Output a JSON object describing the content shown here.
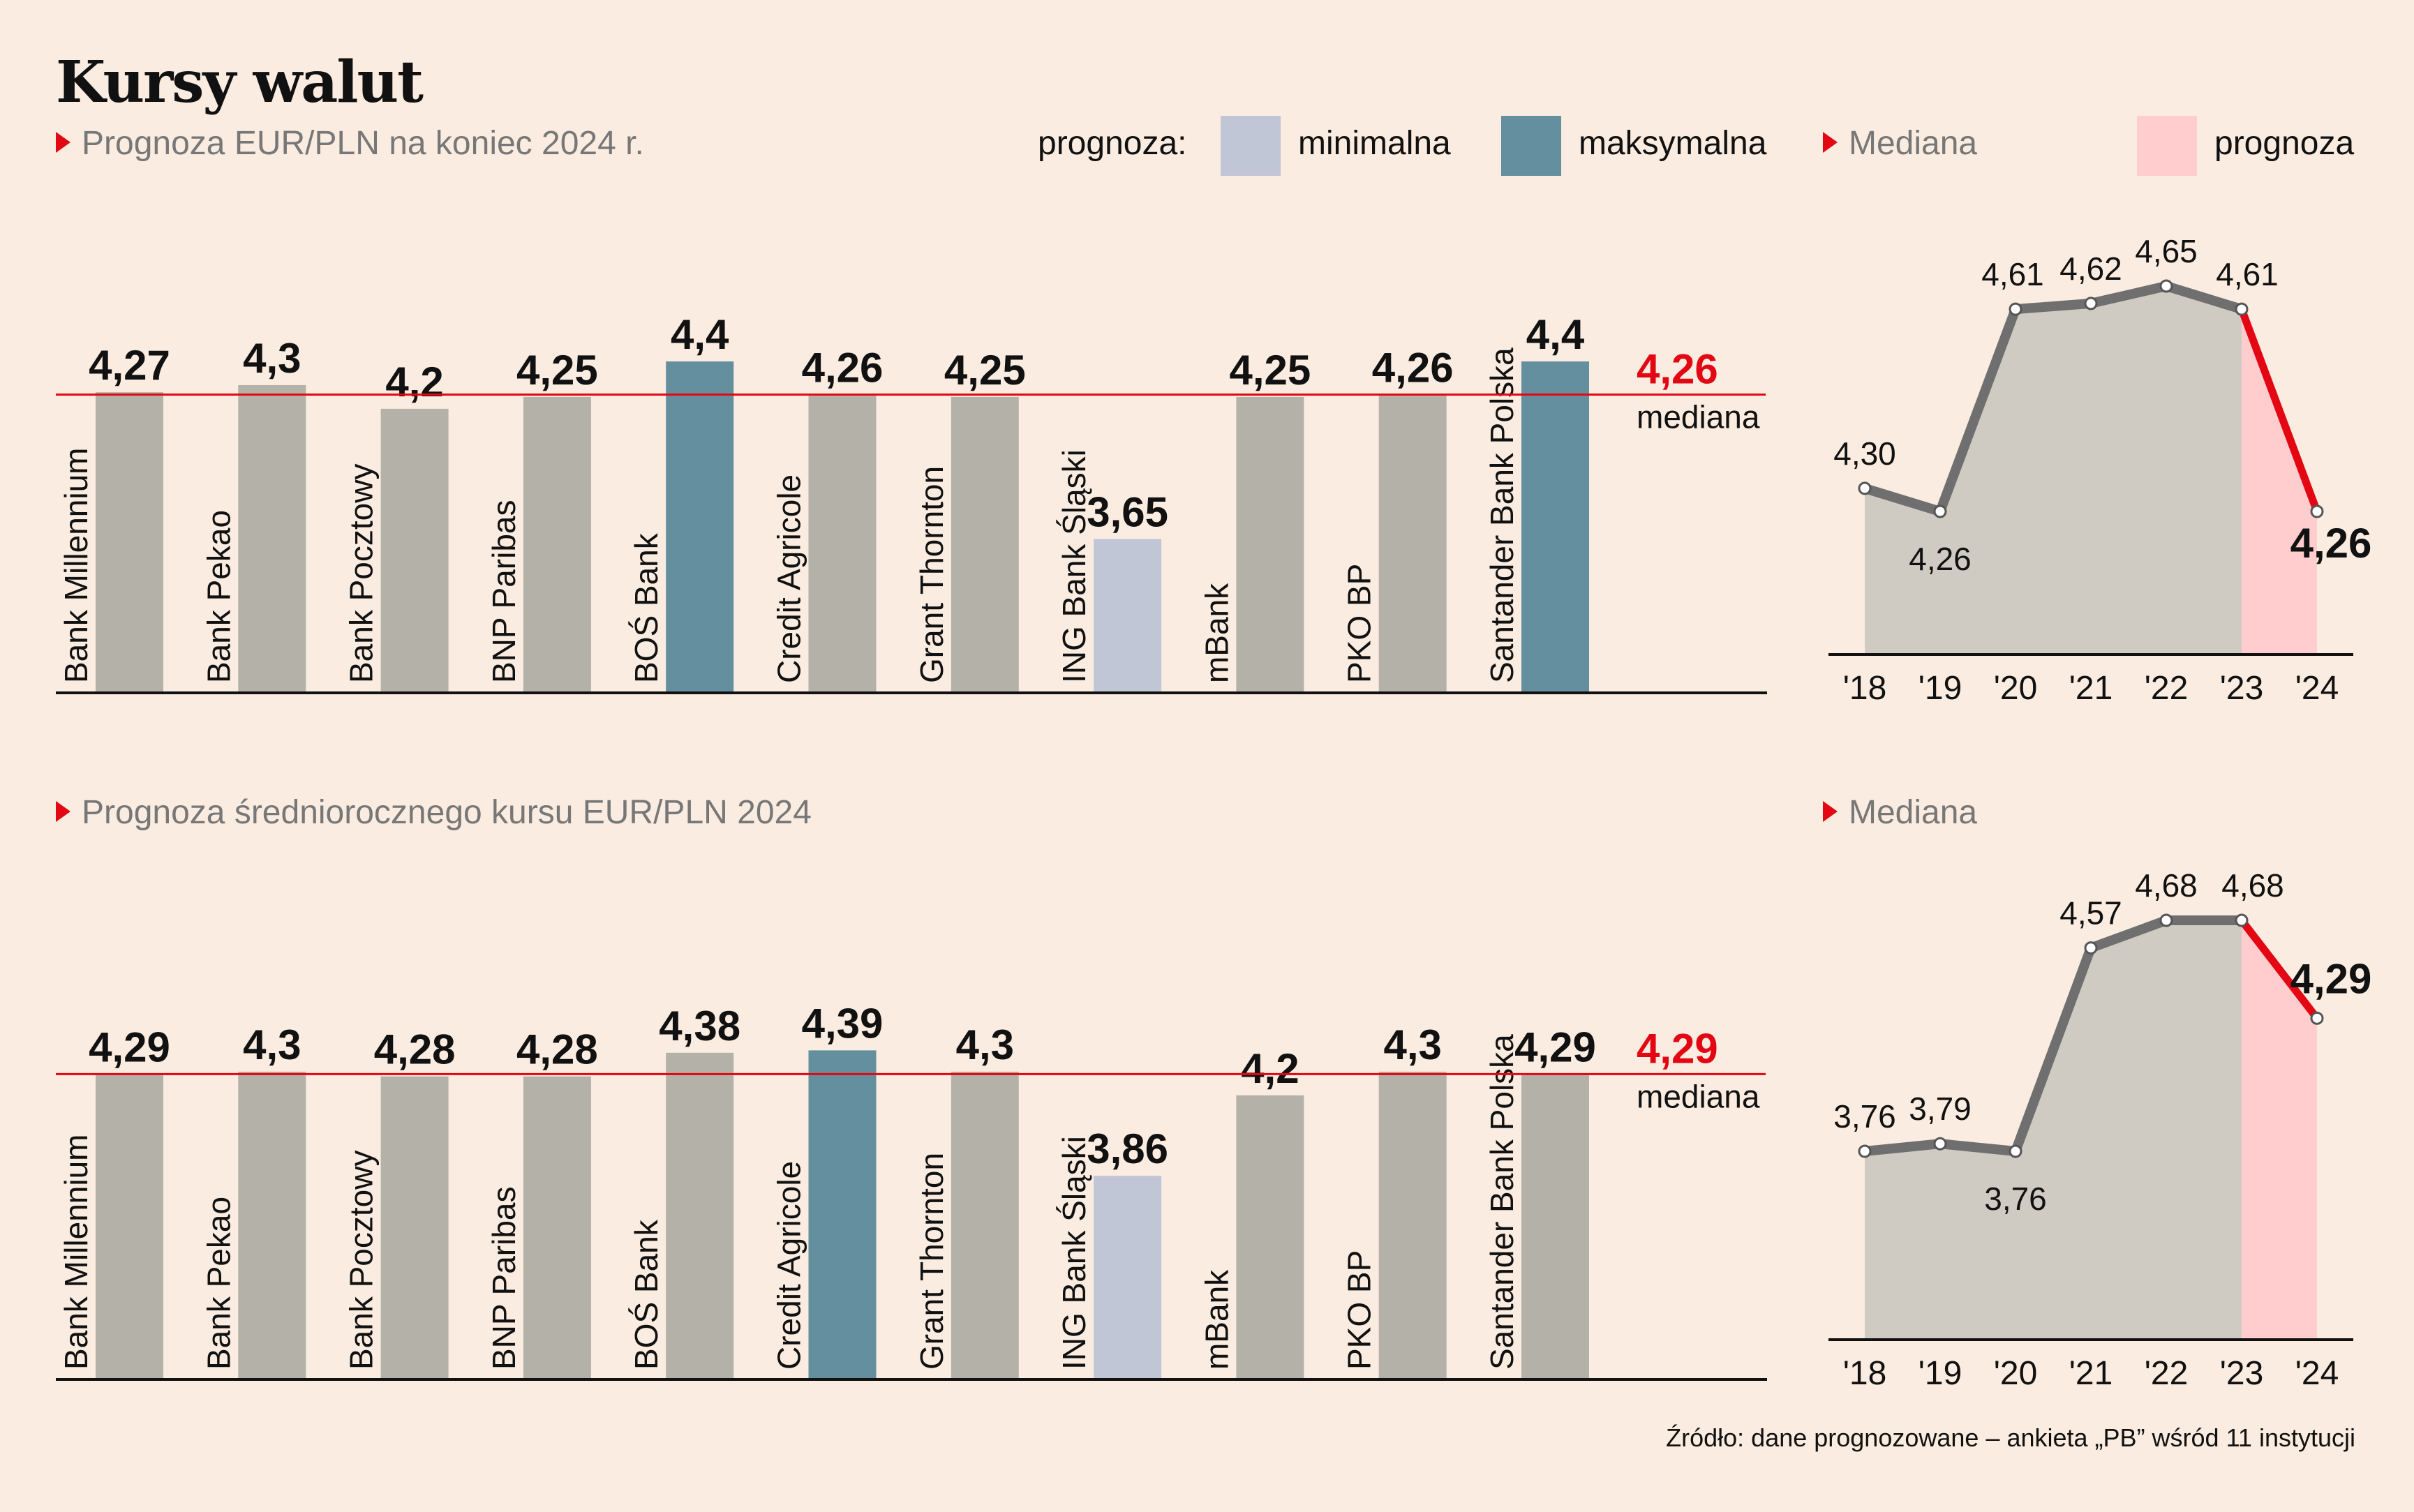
{
  "title": "Kursy walut",
  "legend": {
    "prefix": "prognoza:",
    "min_label": "minimalna",
    "max_label": "maksymalna",
    "forecast_label": "prognoza",
    "colors": {
      "min": "#c1c6d6",
      "max": "#648f9f",
      "normal": "#b4b2a8",
      "forecast_area": "#ffcdcd"
    }
  },
  "source": "Źródło: dane prognozowane – ankieta „PB” wśród 11 instytucji",
  "colors": {
    "accent": "#e30613",
    "line": "#6f6f6f",
    "area": "#cfcbc3",
    "axis": "#111111"
  },
  "chart_data": [
    {
      "type": "bar",
      "title": "Prognoza EUR/PLN na koniec 2024 r.",
      "categories": [
        "Bank Millennium",
        "Bank Pekao",
        "Bank Pocztowy",
        "BNP Paribas",
        "BOŚ Bank",
        "Credit Agricole",
        "Grant Thornton",
        "ING Bank Śląski",
        "mBank",
        "PKO BP",
        "Santander Bank Polska"
      ],
      "values": [
        4.27,
        4.3,
        4.2,
        4.25,
        4.4,
        4.26,
        4.25,
        3.65,
        4.25,
        4.26,
        4.4
      ],
      "value_labels": [
        "4,27",
        "4,3",
        "4,2",
        "4,25",
        "4,4",
        "4,26",
        "4,25",
        "3,65",
        "4,25",
        "4,26",
        "4,4"
      ],
      "highlight": [
        "normal",
        "normal",
        "normal",
        "normal",
        "max",
        "normal",
        "normal",
        "min",
        "normal",
        "normal",
        "max"
      ],
      "median": 4.26,
      "median_label": "4,26",
      "median_caption": "mediana"
    },
    {
      "type": "area",
      "title": "Mediana",
      "categories": [
        "'18",
        "'19",
        "'20",
        "'21",
        "'22",
        "'23",
        "'24"
      ],
      "values": [
        4.3,
        4.26,
        4.61,
        4.62,
        4.65,
        4.61,
        4.26
      ],
      "value_labels": [
        "4,30",
        "4,26",
        "4,61",
        "4,62",
        "4,65",
        "4,61",
        "4,26"
      ],
      "forecast_from_index": 5
    },
    {
      "type": "bar",
      "title": "Prognoza średniorocznego kursu EUR/PLN 2024",
      "categories": [
        "Bank Millennium",
        "Bank Pekao",
        "Bank Pocztowy",
        "BNP Paribas",
        "BOŚ Bank",
        "Credit Agricole",
        "Grant Thornton",
        "ING Bank Śląski",
        "mBank",
        "PKO BP",
        "Santander Bank Polska"
      ],
      "values": [
        4.29,
        4.3,
        4.28,
        4.28,
        4.38,
        4.39,
        4.3,
        3.86,
        4.2,
        4.3,
        4.29
      ],
      "value_labels": [
        "4,29",
        "4,3",
        "4,28",
        "4,28",
        "4,38",
        "4,39",
        "4,3",
        "3,86",
        "4,2",
        "4,3",
        "4,29"
      ],
      "highlight": [
        "normal",
        "normal",
        "normal",
        "normal",
        "normal",
        "max",
        "normal",
        "min",
        "normal",
        "normal",
        "normal"
      ],
      "median": 4.29,
      "median_label": "4,29",
      "median_caption": "mediana"
    },
    {
      "type": "area",
      "title": "Mediana",
      "categories": [
        "'18",
        "'19",
        "'20",
        "'21",
        "'22",
        "'23",
        "'24"
      ],
      "values": [
        3.76,
        3.79,
        3.76,
        4.57,
        4.68,
        4.68,
        4.29
      ],
      "value_labels": [
        "3,76",
        "3,79",
        "3,76",
        "4,57",
        "4,68",
        "4,68",
        "4,29"
      ],
      "forecast_from_index": 5
    }
  ]
}
